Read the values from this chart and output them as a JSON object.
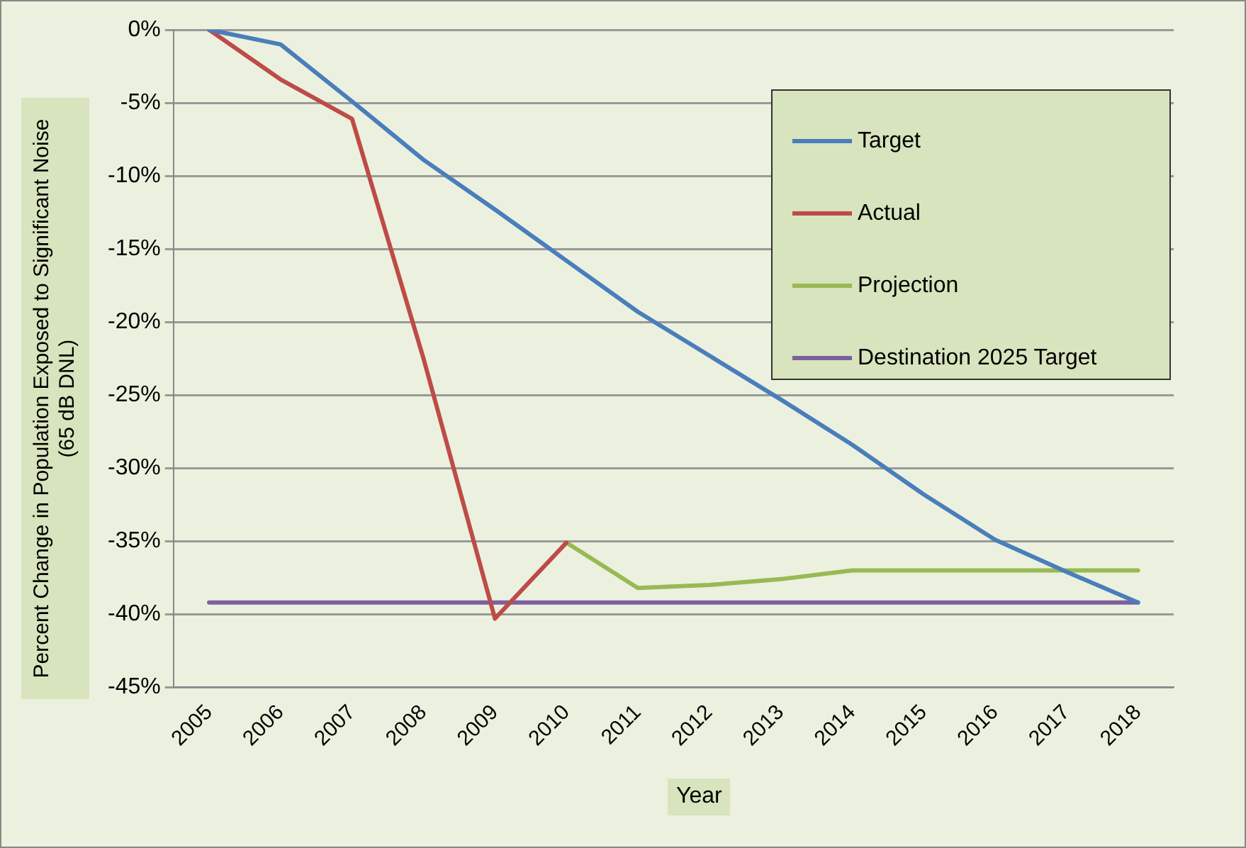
{
  "chart_data": {
    "type": "line",
    "xlabel": "Year",
    "ylabel": "Percent Change in Population Exposed to Significant Noise (65 dB DNL)",
    "categories": [
      "2005",
      "2006",
      "2007",
      "2008",
      "2009",
      "2010",
      "2011",
      "2012",
      "2013",
      "2014",
      "2015",
      "2016",
      "2017",
      "2018"
    ],
    "series": [
      {
        "name": "Target",
        "color": "#4a7ebb",
        "values": [
          0,
          -1.0,
          -4.9,
          -8.9,
          -12.3,
          -15.8,
          -19.3,
          -22.3,
          -25.3,
          -28.4,
          -31.8,
          -34.9,
          -37.1,
          -39.2
        ]
      },
      {
        "name": "Actual",
        "color": "#be4b48",
        "values": [
          0,
          -3.4,
          -6.1,
          -22.5,
          -40.3,
          -35.1,
          null,
          null,
          null,
          null,
          null,
          null,
          null,
          null
        ]
      },
      {
        "name": "Projection",
        "color": "#98b954",
        "values": [
          null,
          null,
          null,
          null,
          null,
          -35.1,
          -38.2,
          -38.0,
          -37.6,
          -37.0,
          -37.0,
          -37.0,
          -37.0,
          -37.0
        ]
      },
      {
        "name": "Destination 2025 Target",
        "color": "#7d60a0",
        "values": [
          -39.2,
          -39.2,
          -39.2,
          -39.2,
          -39.2,
          -39.2,
          -39.2,
          -39.2,
          -39.2,
          -39.2,
          -39.2,
          -39.2,
          -39.2,
          -39.2
        ]
      }
    ],
    "ylim": [
      -45,
      0
    ],
    "yticks": [
      {
        "value": 0,
        "label": "0%"
      },
      {
        "value": -5,
        "label": "-5%"
      },
      {
        "value": -10,
        "label": "-10%"
      },
      {
        "value": -15,
        "label": "-15%"
      },
      {
        "value": -20,
        "label": "-20%"
      },
      {
        "value": -25,
        "label": "-25%"
      },
      {
        "value": -30,
        "label": "-30%"
      },
      {
        "value": -35,
        "label": "-35%"
      },
      {
        "value": -40,
        "label": "-40%"
      },
      {
        "value": -45,
        "label": "-45%"
      }
    ],
    "grid": "y",
    "legend": "top right",
    "marker": "none",
    "line_style": "solid"
  }
}
